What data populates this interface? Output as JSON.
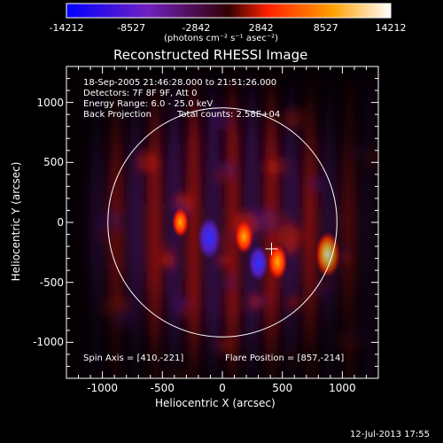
{
  "chart_data": {
    "type": "heatmap",
    "title": "Reconstructed RHESSI Image",
    "xlabel": "Heliocentric X (arcsec)",
    "ylabel": "Heliocentric Y (arcsec)",
    "xlim": [
      -1300,
      1300
    ],
    "ylim": [
      -1300,
      1300
    ],
    "x_ticks": [
      "-1000",
      "-500",
      "0",
      "500",
      "1000"
    ],
    "x_tick_values": [
      -1000,
      -500,
      0,
      500,
      1000
    ],
    "y_ticks": [
      "1000",
      "500",
      "0",
      "-500",
      "-1000"
    ],
    "y_tick_values": [
      1000,
      500,
      0,
      -500,
      -1000
    ],
    "colorbar": {
      "ticks": [
        "-14212",
        "-8527",
        "-2842",
        "2842",
        "8527",
        "14212"
      ],
      "tick_values": [
        -14212,
        -8527,
        -2842,
        2842,
        8527,
        14212
      ],
      "range": [
        -14212,
        14212
      ],
      "units": "(photons cm⁻² s⁻¹ asec⁻²)",
      "colors": [
        "#0000ff",
        "#7020c0",
        "#ff2000",
        "#ffa000",
        "#ffffff"
      ]
    },
    "annotations": [
      "18-Sep-2005 21:46:28.000 to 21:51:26.000",
      "Detectors: 7F 8F 9F, Att 0",
      "Energy Range: 6.0 - 25.0 keV",
      "Back Projection",
      "Total counts: 2.58E+04"
    ],
    "spin_axis": "Spin Axis = [410,-221]",
    "flare_position": "Flare Position = [857,-214]",
    "solar_radius_arcsec": 955,
    "spin_axis_point": [
      410,
      -221
    ],
    "flare_point": [
      857,
      -214
    ],
    "hot_spots": [
      {
        "x": 880,
        "y": -270,
        "value": 14212
      },
      {
        "x": 460,
        "y": -330,
        "value": 9000
      },
      {
        "x": 180,
        "y": -120,
        "value": 8000
      },
      {
        "x": -350,
        "y": 0,
        "value": 6000
      },
      {
        "x": -110,
        "y": -130,
        "value": -12000
      },
      {
        "x": 300,
        "y": -340,
        "value": -9000
      }
    ]
  },
  "timestamp": "12-Jul-2013 17:55"
}
